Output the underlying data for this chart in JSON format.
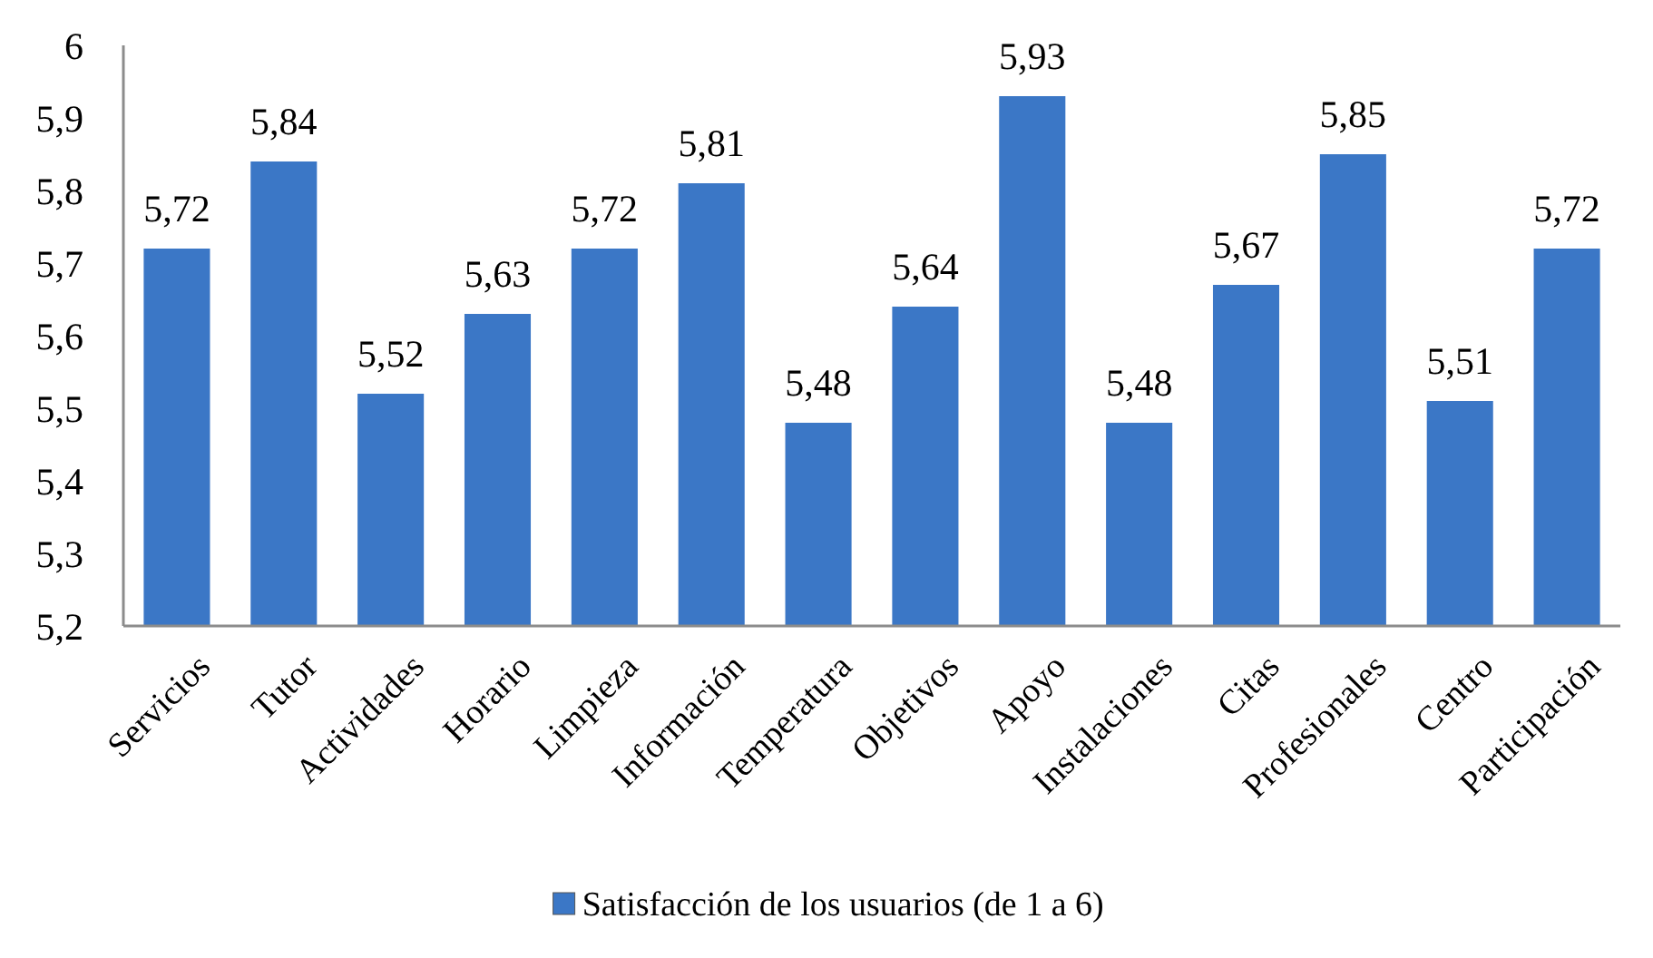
{
  "chart_data": {
    "type": "bar",
    "categories": [
      "Servicios",
      "Tutor",
      "Actividades",
      "Horario",
      "Limpieza",
      "Información",
      "Temperatura",
      "Objetivos",
      "Apoyo",
      "Instalaciones",
      "Citas",
      "Profesionales",
      "Centro",
      "Participación"
    ],
    "series": [
      {
        "name": "Satisfacción de los usuarios (de 1 a 6)",
        "color": "#3b77c6",
        "values": [
          5.72,
          5.84,
          5.52,
          5.63,
          5.72,
          5.81,
          5.48,
          5.64,
          5.93,
          5.48,
          5.67,
          5.85,
          5.51,
          5.72
        ],
        "value_labels": [
          "5,72",
          "5,84",
          "5,52",
          "5,63",
          "5,72",
          "5,81",
          "5,48",
          "5,64",
          "5,93",
          "5,48",
          "5,67",
          "5,85",
          "5,51",
          "5,72"
        ]
      }
    ],
    "ylim": [
      5.2,
      6
    ],
    "yticks": [
      {
        "value": 5.2,
        "label": "5,2"
      },
      {
        "value": 5.3,
        "label": "5,3"
      },
      {
        "value": 5.4,
        "label": "5,4"
      },
      {
        "value": 5.5,
        "label": "5,5"
      },
      {
        "value": 5.6,
        "label": "5,6"
      },
      {
        "value": 5.7,
        "label": "5,7"
      },
      {
        "value": 5.8,
        "label": "5,8"
      },
      {
        "value": 5.9,
        "label": "5,9"
      },
      6
    ],
    "legend": "bottom",
    "marker": "square"
  }
}
